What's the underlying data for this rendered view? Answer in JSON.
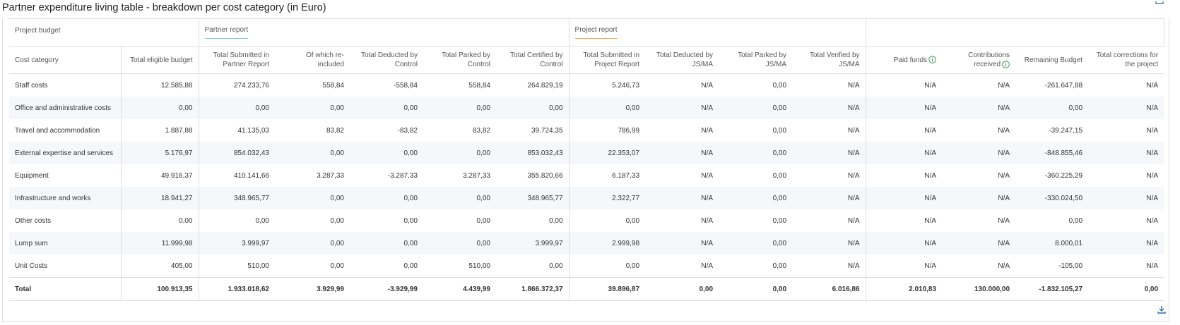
{
  "header": {
    "title": "Partner expenditure living table - breakdown per cost category (in Euro)"
  },
  "table": {
    "groups": [
      "Project budget",
      "Partner report",
      "Project report"
    ],
    "columns": [
      "Cost category",
      "Total eligible budget",
      "Total Submitted in Partner Report",
      "Of which re-included",
      "Total Deducted by Control",
      "Total Parked by Control",
      "Total Certified by Control",
      "Total Submitted in Project Report",
      "Total Deducted by JS/MA",
      "Total Parked by JS/MA",
      "Total Verified by JS/MA",
      "Paid funds",
      "Contributions received",
      "Remaining Budget",
      "Total corrections for the project"
    ],
    "rows": [
      [
        "Staff costs",
        "12.585,88",
        "274.233,76",
        "558,84",
        "-558,84",
        "558,84",
        "264.829,19",
        "5.246,73",
        "N/A",
        "0,00",
        "N/A",
        "N/A",
        "N/A",
        "-261.647,88",
        "N/A"
      ],
      [
        "Office and administrative costs",
        "0,00",
        "0,00",
        "0,00",
        "0,00",
        "0,00",
        "0,00",
        "0,00",
        "N/A",
        "0,00",
        "N/A",
        "N/A",
        "N/A",
        "0,00",
        "N/A"
      ],
      [
        "Travel and accommodation",
        "1.887,88",
        "41.135,03",
        "83,82",
        "-83,82",
        "83,82",
        "39.724,35",
        "786,99",
        "N/A",
        "0,00",
        "N/A",
        "N/A",
        "N/A",
        "-39.247,15",
        "N/A"
      ],
      [
        "External expertise and services",
        "5.176,97",
        "854.032,43",
        "0,00",
        "0,00",
        "0,00",
        "853.032,43",
        "22.353,07",
        "N/A",
        "0,00",
        "N/A",
        "N/A",
        "N/A",
        "-848.855,46",
        "N/A"
      ],
      [
        "Equipment",
        "49.916,37",
        "410.141,66",
        "3.287,33",
        "-3.287,33",
        "3.287,33",
        "355.820,66",
        "6.187,33",
        "N/A",
        "0,00",
        "N/A",
        "N/A",
        "N/A",
        "-360.225,29",
        "N/A"
      ],
      [
        "Infrastructure and works",
        "18.941,27",
        "348.965,77",
        "0,00",
        "0,00",
        "0,00",
        "348.965,77",
        "2.322,77",
        "N/A",
        "0,00",
        "N/A",
        "N/A",
        "N/A",
        "-330.024,50",
        "N/A"
      ],
      [
        "Other costs",
        "0,00",
        "0,00",
        "0,00",
        "0,00",
        "0,00",
        "0,00",
        "0,00",
        "N/A",
        "0,00",
        "N/A",
        "N/A",
        "N/A",
        "0,00",
        "N/A"
      ],
      [
        "Lump sum",
        "11.999,98",
        "3.999,97",
        "0,00",
        "0,00",
        "0,00",
        "3.999,97",
        "2.999,98",
        "N/A",
        "0,00",
        "N/A",
        "N/A",
        "N/A",
        "8.000,01",
        "N/A"
      ],
      [
        "Unit Costs",
        "405,00",
        "510,00",
        "0,00",
        "0,00",
        "510,00",
        "0,00",
        "0,00",
        "N/A",
        "0,00",
        "N/A",
        "N/A",
        "N/A",
        "-105,00",
        "N/A"
      ]
    ],
    "total": [
      "Total",
      "100.913,35",
      "1.933.018,62",
      "3.929,99",
      "-3.929,99",
      "4.439,99",
      "1.866.372,37",
      "39.896,87",
      "0,00",
      "0,00",
      "6.016,86",
      "2.010,83",
      "130.000,00",
      "-1.832.105,27",
      "0,00"
    ]
  }
}
